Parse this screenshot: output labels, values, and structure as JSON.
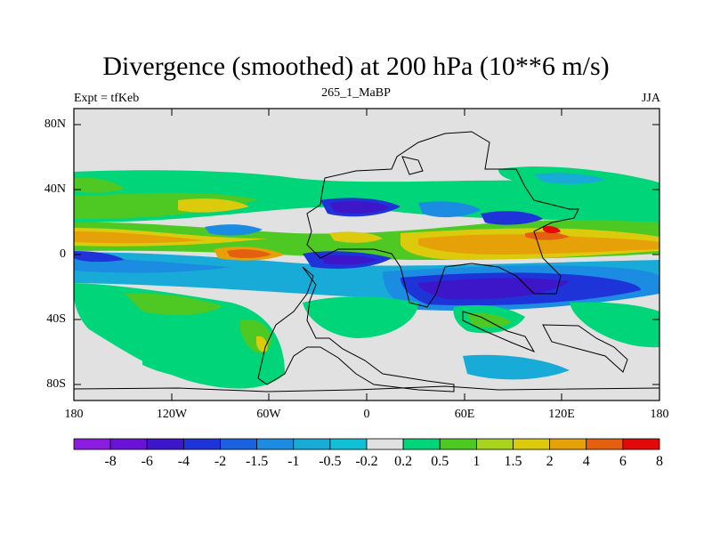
{
  "title": "Divergence (smoothed) at 200 hPa (10**6 m/s)",
  "subtitle_left": "Expt = tfKeb",
  "subtitle_center": "265_1_MaBP",
  "subtitle_right": "JJA",
  "y_tick_labels": [
    "80N",
    "40N",
    "0",
    "40S",
    "80S"
  ],
  "x_tick_labels": [
    "180",
    "120W",
    "60W",
    "0",
    "60E",
    "120E",
    "180"
  ],
  "colorbar": {
    "labels": [
      "-8",
      "-6",
      "-4",
      "-2",
      "-1.5",
      "-1",
      "-0.5",
      "-0.2",
      "0.2",
      "0.5",
      "1",
      "1.5",
      "2",
      "4",
      "6",
      "8"
    ],
    "colors": [
      "#8c1de0",
      "#6a12d6",
      "#3c16c8",
      "#1e34d8",
      "#1a62e0",
      "#1b8ce2",
      "#19abd8",
      "#11c0d6",
      "#e1e1e1",
      "#00d57a",
      "#4ec924",
      "#a8d31e",
      "#dccb0c",
      "#e6a008",
      "#e46010",
      "#e50808"
    ]
  },
  "map": {
    "lat_range": [
      -90,
      90
    ],
    "lon_range": [
      -180,
      180
    ],
    "background_color": "#e1e1e1"
  }
}
